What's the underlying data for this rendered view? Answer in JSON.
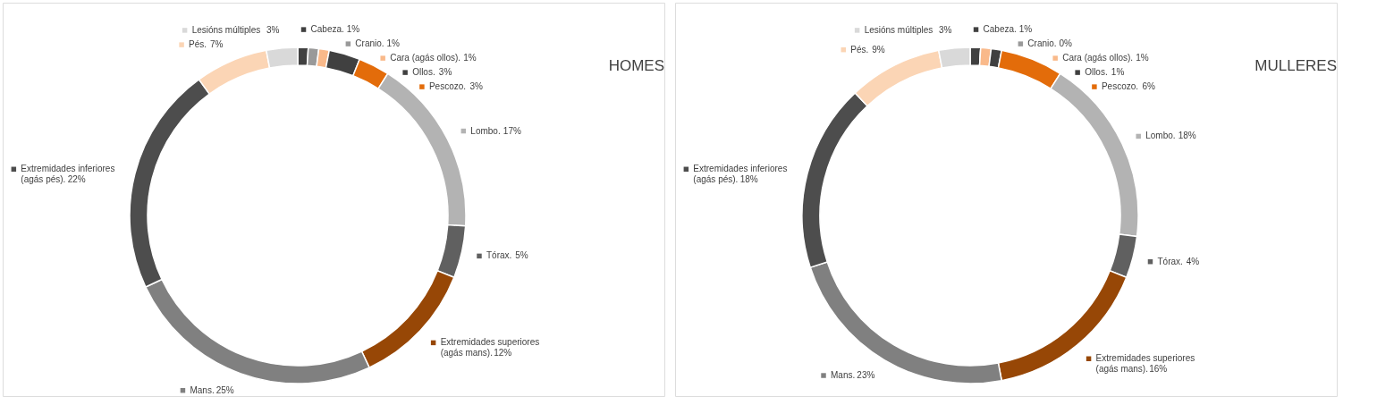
{
  "chart_data": [
    {
      "type": "donut",
      "title": "HOMES",
      "categories": [
        "Cabeza.",
        "Cranio.",
        "Cara (agás ollos).",
        "Ollos.",
        "Pescozo.",
        "Lombo.",
        "Tórax.",
        "Extremidades  superiores (agás mans).",
        "Mans.",
        "Extremidades  inferiores (agás pés).",
        "Pés.",
        "Lesións múltiples"
      ],
      "values": [
        1,
        1,
        1,
        3,
        3,
        17,
        5,
        12,
        25,
        22,
        7,
        3
      ],
      "value_labels": [
        "1%",
        "1%",
        "1%",
        "3%",
        "3%",
        "17%",
        "5%",
        "12%",
        "25%",
        "22%",
        "7%",
        "3%"
      ],
      "colors": [
        "#404040",
        "#999999",
        "#f9b98a",
        "#404040",
        "#e36c0a",
        "#b3b3b3",
        "#606060",
        "#974706",
        "#808080",
        "#4d4d4d",
        "#fbd5b5",
        "#d9d9d9"
      ],
      "legend": "top left"
    },
    {
      "type": "donut",
      "title": "MULLERES",
      "categories": [
        "Cabeza.",
        "Cranio.",
        "Cara (agás ollos).",
        "Ollos.",
        "Pescozo.",
        "Lombo.",
        "Tórax.",
        "Extremidades  superiores (agás mans).",
        "Mans.",
        "Extremidades  inferiores (agás pés).",
        "Pés.",
        "Lesións múltiples"
      ],
      "values": [
        1,
        0,
        1,
        1,
        6,
        18,
        4,
        16,
        23,
        18,
        9,
        3
      ],
      "value_labels": [
        "1%",
        "0%",
        "1%",
        "1%",
        "6%",
        "18%",
        "4%",
        "16%",
        "23%",
        "18%",
        "9%",
        "3%"
      ],
      "colors": [
        "#404040",
        "#999999",
        "#f9b98a",
        "#404040",
        "#e36c0a",
        "#b3b3b3",
        "#606060",
        "#974706",
        "#808080",
        "#4d4d4d",
        "#fbd5b5",
        "#d9d9d9"
      ],
      "legend": "top left"
    }
  ]
}
